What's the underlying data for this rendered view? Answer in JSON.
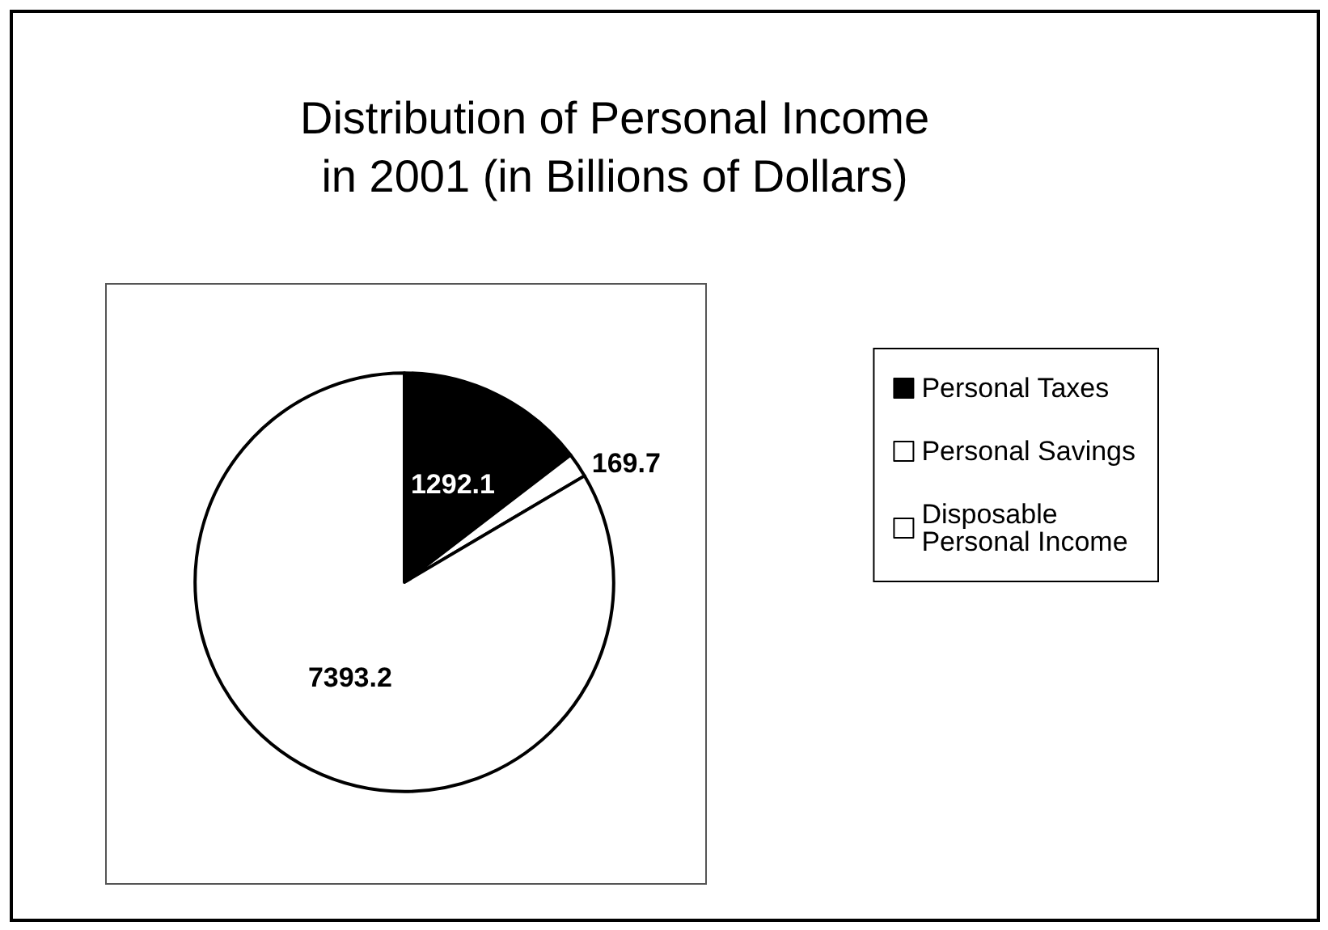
{
  "chart_data": {
    "type": "pie",
    "title": "Distribution of Personal Income\nin 2001 (in Billions of Dollars)",
    "categories": [
      "Personal Taxes",
      "Personal Savings",
      "Disposable Personal Income"
    ],
    "values": [
      1292.1,
      169.7,
      7393.2
    ],
    "colors": [
      "#000000",
      "#ffffff",
      "#ffffff"
    ],
    "data_labels": true,
    "legend": "right"
  }
}
